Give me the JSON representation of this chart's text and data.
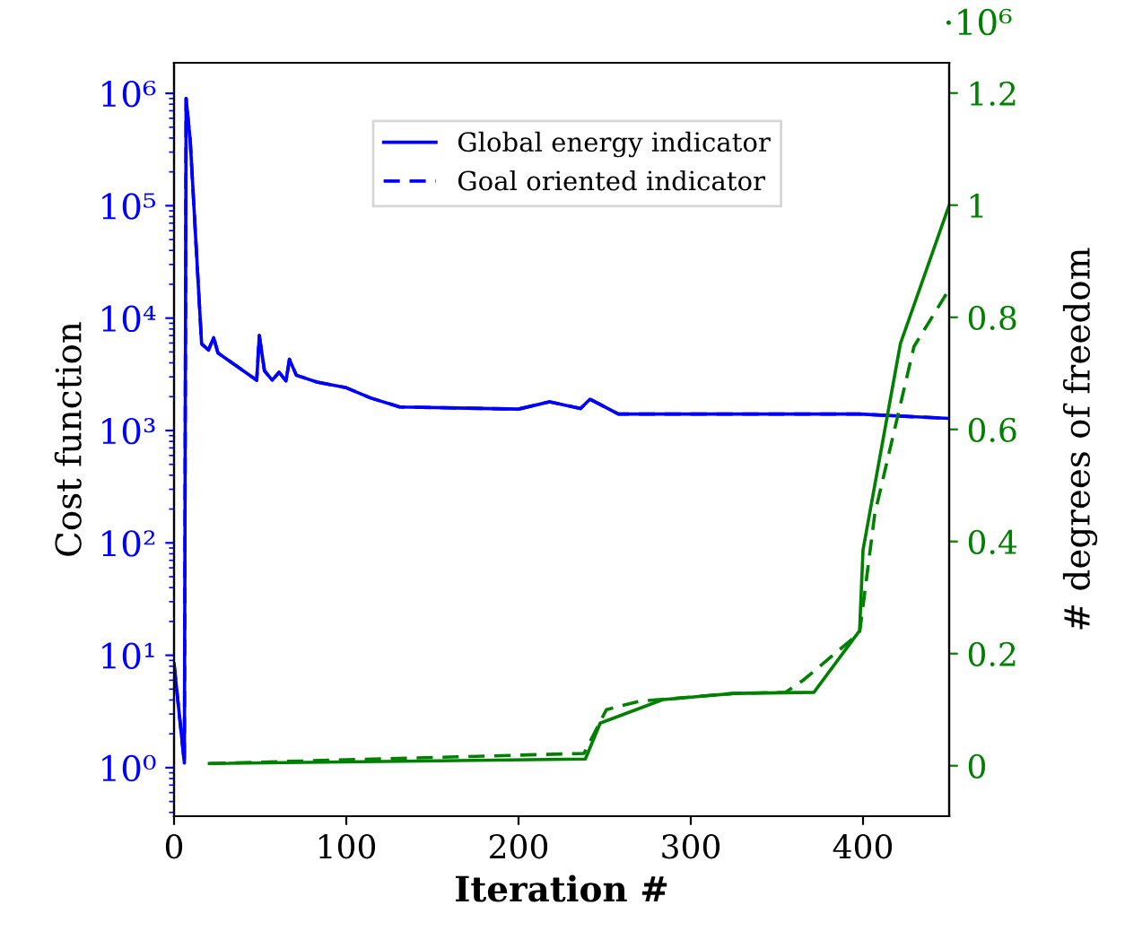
{
  "chart_data": {
    "type": "line",
    "xlabel": "Iteration #",
    "ylabel": "Cost function",
    "y2label": "# degrees of freedom",
    "annotations": [
      "·10⁶"
    ],
    "log": "y",
    "grid": false,
    "legend": "top",
    "xlim": [
      0,
      450
    ],
    "xticks": [
      0,
      100,
      200,
      300,
      400
    ],
    "ylim": [
      0.37,
      1870000
    ],
    "yticks": [
      {
        "value": 1,
        "label": "10⁰"
      },
      {
        "value": 10,
        "label": "10¹"
      },
      {
        "value": 100,
        "label": "10²"
      },
      {
        "value": 1000,
        "label": "10³"
      },
      {
        "value": 10000,
        "label": "10⁴"
      },
      {
        "value": 100000,
        "label": "10⁵"
      },
      {
        "value": 1000000,
        "label": "10⁶"
      }
    ],
    "y2lim": [
      -0.09,
      1.254
    ],
    "y2ticks": [
      0,
      0.2,
      0.4,
      0.6,
      0.8,
      1,
      1.2
    ],
    "series": [
      {
        "name": "Global energy indicator",
        "color": "#0000ff",
        "line_style": "solid",
        "x": [
          0,
          6,
          7,
          9.4,
          16,
          20,
          23,
          25.5,
          48,
          49.5,
          52.5,
          57,
          61,
          65,
          67,
          71,
          83,
          100,
          114,
          131,
          200,
          218,
          236,
          241.5,
          258,
          328,
          398,
          450
        ],
        "values": [
          8.4,
          1.1,
          900000,
          380000,
          5900,
          5200,
          6700,
          4900,
          2800,
          7000,
          3400,
          2800,
          3300,
          2750,
          4300,
          3100,
          2700,
          2400,
          1950,
          1620,
          1550,
          1800,
          1570,
          1900,
          1400,
          1400,
          1400,
          1280
        ]
      },
      {
        "name": "Goal oriented indicator",
        "color": "#0000ff",
        "line_style": "dashed",
        "x": [
          0,
          6,
          7,
          9.4,
          16,
          20,
          23,
          25.5,
          48,
          49.5,
          52.5,
          57,
          61,
          65,
          67,
          71,
          83,
          100,
          114,
          131,
          200,
          218,
          236,
          241.5,
          258,
          328,
          398,
          450
        ],
        "values": [
          8.4,
          1.1,
          900000,
          380000,
          5900,
          5200,
          6700,
          4900,
          2800,
          7000,
          3400,
          2800,
          3300,
          2750,
          4300,
          3100,
          2700,
          2400,
          1950,
          1620,
          1550,
          1800,
          1570,
          1900,
          1400,
          1400,
          1400,
          1280
        ]
      },
      {
        "color": "#008000",
        "axis": "y2",
        "line_style": "solid",
        "x": [
          20.5,
          238.8,
          247.4,
          283.8,
          325,
          371.5,
          398,
          400,
          421.7,
          450
        ],
        "values": [
          0.004,
          0.012,
          0.076,
          0.118,
          0.129,
          0.131,
          0.241,
          0.385,
          0.753,
          1.0
        ]
      },
      {
        "color": "#008000",
        "axis": "y2",
        "line_style": "dashed",
        "x": [
          20.5,
          238,
          251,
          270,
          325,
          355,
          365,
          398,
          406.8,
          429.6,
          450
        ],
        "values": [
          0.004,
          0.022,
          0.1,
          0.115,
          0.129,
          0.131,
          0.152,
          0.237,
          0.449,
          0.748,
          0.85
        ]
      }
    ]
  }
}
